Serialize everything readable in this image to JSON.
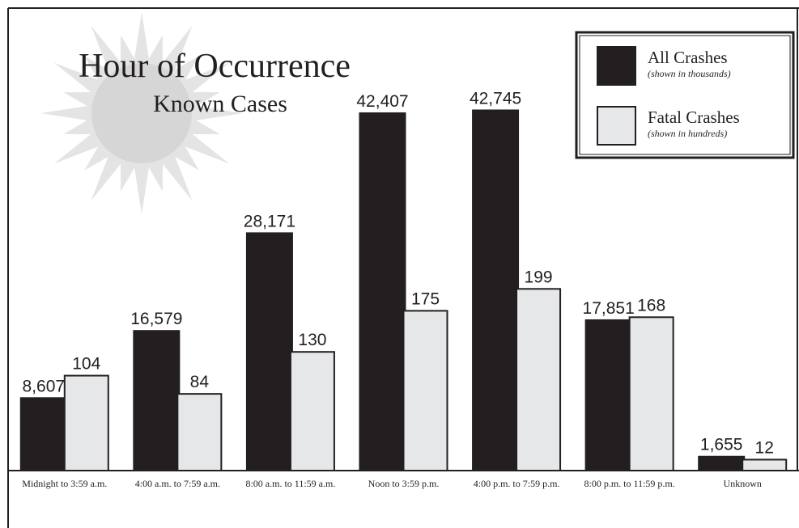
{
  "chart_data": {
    "type": "bar",
    "title": "Hour of Occurrence",
    "subtitle": "Known Cases",
    "categories": [
      "Midnight to 3:59 a.m.",
      "4:00 a.m. to 7:59 a.m.",
      "8:00 a.m. to 11:59 a.m.",
      "Noon to 3:59 p.m.",
      "4:00 p.m. to 7:59 p.m.",
      "8:00 p.m. to 11:59 p.m.",
      "Unknown"
    ],
    "series": [
      {
        "name": "All Crashes",
        "note": "(shown in thousands)",
        "color": "#231f20",
        "values": [
          8607,
          16579,
          28171,
          42407,
          42745,
          17851,
          1655
        ],
        "value_labels": [
          "8,607",
          "16,579",
          "28,171",
          "42,407",
          "42,745",
          "17,851",
          "1,655"
        ]
      },
      {
        "name": "Fatal Crashes",
        "note": "(shown in hundreds)",
        "color": "#e6e7e8",
        "axis": "y2",
        "values": [
          104,
          84,
          130,
          175,
          199,
          168,
          12
        ]
      }
    ],
    "ylim": [
      0,
      52000
    ],
    "y2lim": [
      0,
      480
    ],
    "legend": "top-right"
  }
}
